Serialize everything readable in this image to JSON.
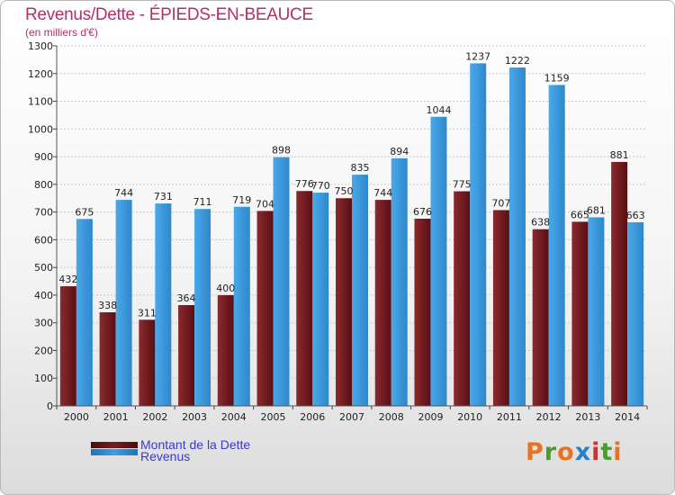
{
  "header": {
    "title": "Revenus/Dette - ÉPIEDS-EN-BEAUCE",
    "subtitle": "(en milliers d'€)"
  },
  "colors": {
    "dette": "#7a1c22",
    "revenus": "#3d9ee0"
  },
  "legend": {
    "items": [
      {
        "label": "Montant de la Dette",
        "color": "#7a1c22"
      },
      {
        "label": "Revenus",
        "color": "#3d9ee0"
      }
    ]
  },
  "logo": {
    "letters": [
      "P",
      "r",
      "o",
      "x",
      "i",
      "t",
      "i"
    ],
    "colors": [
      "#e8731c",
      "#4a9c2e",
      "#e8731c",
      "#2a7fc8",
      "#d62e2e",
      "#4a9c2e",
      "#e8731c"
    ]
  },
  "chart_data": {
    "type": "bar",
    "title": "Revenus/Dette - ÉPIEDS-EN-BEAUCE",
    "ylabel": "(en milliers d'€)",
    "categories": [
      "2000",
      "2001",
      "2002",
      "2003",
      "2004",
      "2005",
      "2006",
      "2007",
      "2008",
      "2009",
      "2010",
      "2011",
      "2012",
      "2013",
      "2014"
    ],
    "series": [
      {
        "name": "Montant de la Dette",
        "values": [
          432,
          338,
          311,
          364,
          400,
          704,
          776,
          750,
          744,
          676,
          775,
          707,
          638,
          665,
          881
        ]
      },
      {
        "name": "Revenus",
        "values": [
          675,
          744,
          731,
          711,
          719,
          898,
          770,
          835,
          894,
          1044,
          1237,
          1222,
          1159,
          681,
          663
        ]
      }
    ],
    "ylim": [
      0,
      1300
    ],
    "yticks": [
      0,
      100,
      200,
      300,
      400,
      500,
      600,
      700,
      800,
      900,
      1000,
      1100,
      1200,
      1300
    ],
    "grid": true,
    "legend_position": "bottom-left"
  }
}
